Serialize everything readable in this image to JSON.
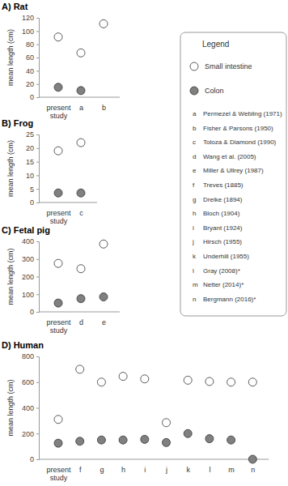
{
  "chart_data": [
    {
      "type": "scatter",
      "title": "A) Rat",
      "y_label": "mean length (cm)",
      "categories": [
        "present study",
        "a",
        "b"
      ],
      "series": [
        {
          "name": "Small intestine",
          "color": "#ffffff",
          "marker": "circle",
          "values": [
            91,
            67,
            111
          ]
        },
        {
          "name": "Colon",
          "color": "#808080",
          "marker": "circle",
          "values": [
            15,
            10,
            null
          ]
        }
      ],
      "ylim": [
        0,
        120
      ],
      "yticks": [
        0,
        20,
        40,
        60,
        80,
        100,
        120
      ],
      "grid": false
    },
    {
      "type": "scatter",
      "title": "B) Frog",
      "y_label": "mean length (cm)",
      "categories": [
        "present study",
        "c"
      ],
      "series": [
        {
          "name": "Small intestine",
          "color": "#ffffff",
          "marker": "circle",
          "values": [
            19,
            22
          ]
        },
        {
          "name": "Colon",
          "color": "#808080",
          "marker": "circle",
          "values": [
            3.5,
            3.5
          ]
        }
      ],
      "ylim": [
        0,
        25
      ],
      "yticks": [
        0,
        5,
        10,
        15,
        20,
        25
      ],
      "grid": false
    },
    {
      "type": "scatter",
      "title": "C) Fetal pig",
      "y_label": "mean length (cm)",
      "categories": [
        "present study",
        "d",
        "e"
      ],
      "series": [
        {
          "name": "Small intestine",
          "color": "#ffffff",
          "marker": "circle",
          "values": [
            275,
            245,
            385
          ]
        },
        {
          "name": "Colon",
          "color": "#808080",
          "marker": "circle",
          "values": [
            50,
            75,
            85
          ]
        }
      ],
      "ylim": [
        0,
        400
      ],
      "yticks": [
        0,
        100,
        200,
        300,
        400
      ],
      "grid": false
    },
    {
      "type": "scatter",
      "title": "D) Human",
      "y_label": "mean length (cm)",
      "categories": [
        "present study",
        "f",
        "g",
        "h",
        "i",
        "j",
        "k",
        "l",
        "m",
        "n"
      ],
      "series": [
        {
          "name": "Small intestine",
          "color": "#ffffff",
          "marker": "circle",
          "values": [
            310,
            700,
            600,
            645,
            625,
            285,
            615,
            605,
            600,
            600
          ]
        },
        {
          "name": "Colon",
          "color": "#808080",
          "marker": "circle",
          "values": [
            125,
            140,
            150,
            150,
            155,
            130,
            200,
            160,
            150,
            0
          ]
        }
      ],
      "ylim": [
        0,
        800
      ],
      "yticks": [
        0,
        200,
        400,
        600,
        800
      ],
      "grid": false
    }
  ],
  "legend_box": {
    "title": "Legend",
    "references": [
      {
        "key": "a",
        "label": "Permezel & Webling (1971)"
      },
      {
        "key": "b",
        "label": "Fisher & Parsons (1950)"
      },
      {
        "key": "c",
        "label": "Toloza & Diamond (1990)"
      },
      {
        "key": "d",
        "label": "Wang et al. (2005)"
      },
      {
        "key": "e",
        "label": "Miller & Ullrey (1987)"
      },
      {
        "key": "f",
        "label": "Treves (1885)"
      },
      {
        "key": "g",
        "label": "Dreike (1894)"
      },
      {
        "key": "h",
        "label": "Bloch (1904)"
      },
      {
        "key": "i",
        "label": "Bryant (1924)"
      },
      {
        "key": "j",
        "label": "Hirsch (1955)"
      },
      {
        "key": "k",
        "label": "Underhill (1955)"
      },
      {
        "key": "l",
        "label": "Gray (2008)*"
      },
      {
        "key": "m",
        "label": "Netter (2014)*"
      },
      {
        "key": "n",
        "label": "Bergmann (2016)*"
      }
    ]
  }
}
